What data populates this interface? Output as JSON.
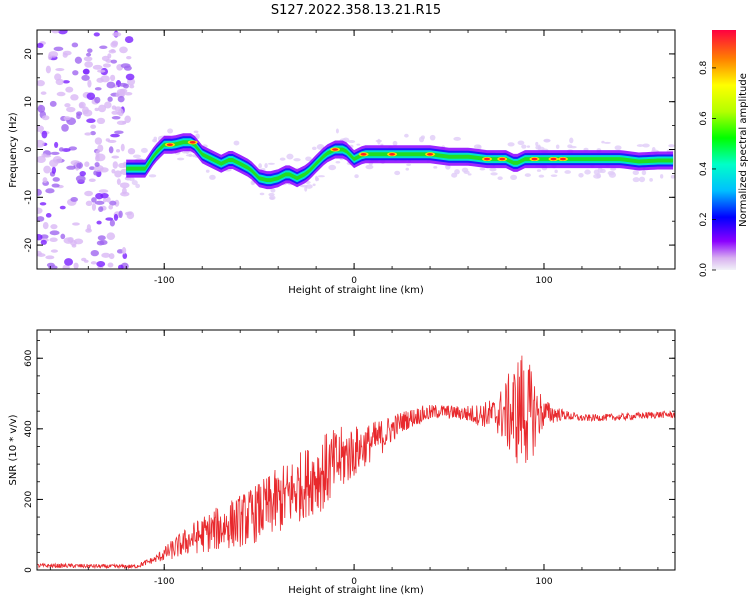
{
  "figure": {
    "title": "S127.2022.358.13.21.R15"
  },
  "chart_data": [
    {
      "type": "heatmap",
      "xlabel": "Height of straight line (km)",
      "ylabel": "Frequency (Hz)",
      "xlim": [
        -167,
        169
      ],
      "ylim": [
        -25,
        25
      ],
      "xticks": [
        -100,
        0,
        100
      ],
      "yticks": [
        -20,
        -10,
        0,
        10,
        20
      ],
      "grid": false,
      "colorbar": {
        "label": "Normalized spectral amplitude",
        "range": [
          0,
          0.95
        ],
        "ticks": [
          "0.0",
          "0.2",
          "0.4",
          "0.6",
          "0.8"
        ]
      },
      "ridge": {
        "note_units": "x in km, y in Hz",
        "x": [
          -118,
          -110,
          -105,
          -100,
          -95,
          -90,
          -85,
          -80,
          -75,
          -70,
          -65,
          -60,
          -55,
          -50,
          -45,
          -40,
          -35,
          -30,
          -25,
          -20,
          -15,
          -10,
          -5,
          0,
          5,
          10,
          20,
          30,
          40,
          50,
          60,
          70,
          80,
          85,
          90,
          100,
          110,
          120,
          130,
          140,
          150,
          160,
          168
        ],
        "y": [
          -4,
          -4,
          -1,
          1,
          1,
          1.5,
          1.5,
          -1,
          -2,
          -3,
          -2,
          -3,
          -4,
          -6,
          -6.5,
          -6,
          -5,
          -6,
          -5,
          -3,
          -1,
          0,
          0,
          -2,
          -1,
          -1,
          -1,
          -1,
          -1,
          -1.5,
          -1.5,
          -2,
          -2,
          -3,
          -2,
          -2,
          -2,
          -2,
          -2,
          -2,
          -2.5,
          -2.3,
          -2.3
        ]
      }
    },
    {
      "type": "line",
      "xlabel": "Height of straight line (km)",
      "ylabel": "SNR (10 * v/v)",
      "xlim": [
        -167,
        169
      ],
      "ylim": [
        0,
        680
      ],
      "xticks": [
        -100,
        0,
        100
      ],
      "yticks": [
        0,
        200,
        400,
        600
      ],
      "color": "#e8292d",
      "series": [
        {
          "name": "",
          "x": [
            -167,
            -150,
            -130,
            -115,
            -105,
            -95,
            -85,
            -75,
            -65,
            -55,
            -45,
            -35,
            -25,
            -15,
            -5,
            5,
            15,
            25,
            35,
            45,
            55,
            65,
            75,
            85,
            88,
            92,
            100,
            110,
            120,
            130,
            140,
            150,
            160,
            169
          ],
          "y": [
            12,
            12,
            10,
            10,
            30,
            60,
            90,
            110,
            130,
            150,
            180,
            210,
            250,
            280,
            320,
            350,
            380,
            420,
            440,
            450,
            445,
            440,
            440,
            445,
            460,
            440,
            445,
            440,
            430,
            432,
            433,
            437,
            440,
            440
          ],
          "spread": [
            6,
            6,
            6,
            6,
            10,
            30,
            45,
            60,
            70,
            80,
            90,
            100,
            100,
            110,
            90,
            60,
            50,
            30,
            25,
            20,
            20,
            30,
            50,
            150,
            170,
            150,
            40,
            15,
            10,
            10,
            10,
            10,
            10,
            10
          ]
        }
      ]
    }
  ]
}
